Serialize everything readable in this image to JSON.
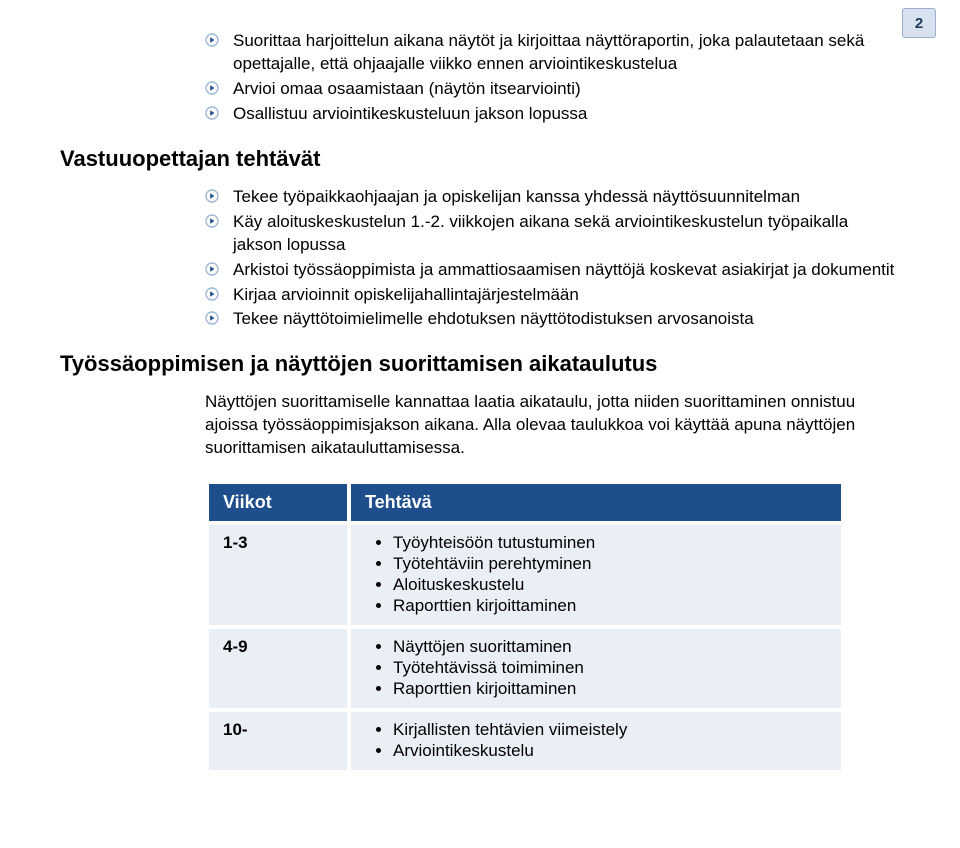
{
  "page_number": "2",
  "colors": {
    "header_bg": "#1e4e8c",
    "row_bg": "#eaeef5",
    "page_num_bg": "#d8e1ee",
    "page_num_border": "#9ab0cf",
    "page_num_text": "#1f3a63",
    "bullet_border": "#9fb9d8",
    "bullet_triangle": "#1e4e8c"
  },
  "intro_bullets": [
    "Suorittaa harjoittelun aikana näytöt ja kirjoittaa näyttöraportin, joka palautetaan sekä opettajalle, että ohjaajalle viikko ennen arviointikeskustelua",
    "Arvioi omaa osaamistaan (näytön itsearviointi)",
    "Osallistuu arviointikeskusteluun jakson lopussa"
  ],
  "section1_title": "Vastuuopettajan tehtävät",
  "section1_bullets": [
    "Tekee työpaikkaohjaajan ja opiskelijan kanssa yhdessä näyttösuunnitelman",
    "Käy aloituskeskustelun 1.-2. viikkojen aikana sekä arviointikeskustelun työpaikalla jakson lopussa",
    "Arkistoi työssäoppimista ja ammattiosaamisen näyttöjä koskevat asiakirjat ja dokumentit",
    "Kirjaa arvioinnit opiskelijahallintajärjestelmään",
    "Tekee näyttötoimielimelle ehdotuksen näyttötodistuksen arvosanoista"
  ],
  "section2_title": "Työssäoppimisen ja näyttöjen suorittamisen aikataulutus",
  "section2_para": "Näyttöjen suorittamiselle kannattaa laatia aikataulu, jotta niiden suorittaminen onnistuu ajoissa työssäoppimisjakson aikana. Alla olevaa taulukkoa voi käyttää apuna näyttöjen suorittamisen aikatauluttamisessa.",
  "table": {
    "headers": [
      "Viikot",
      "Tehtävä"
    ],
    "rows": [
      {
        "weeks": "1-3",
        "tasks": [
          "Työyhteisöön tutustuminen",
          "Työtehtäviin perehtyminen",
          "Aloituskeskustelu",
          "Raporttien kirjoittaminen"
        ]
      },
      {
        "weeks": "4-9",
        "tasks": [
          "Näyttöjen suorittaminen",
          "Työtehtävissä toimiminen",
          "Raporttien kirjoittaminen"
        ]
      },
      {
        "weeks": "10-",
        "tasks": [
          "Kirjallisten tehtävien viimeistely",
          "Arviointikeskustelu"
        ]
      }
    ]
  }
}
